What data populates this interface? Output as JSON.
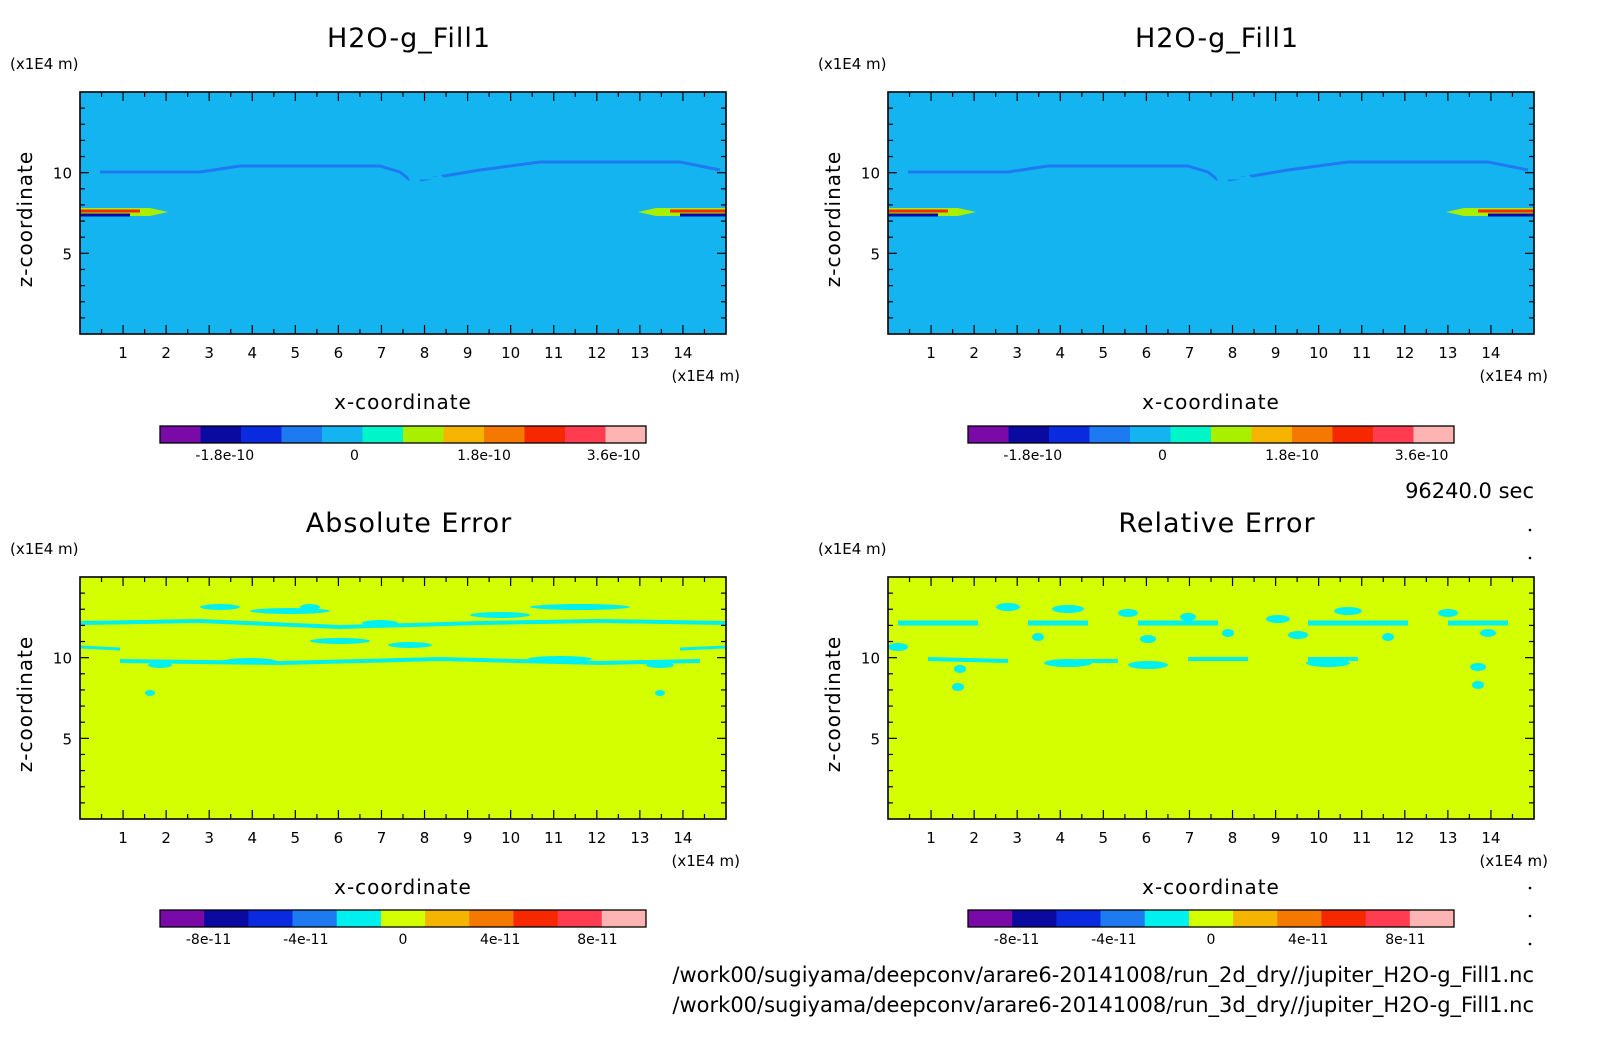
{
  "chart_data": [
    {
      "type": "heatmap",
      "title": "H2O-g_Fill1",
      "xlabel": "x-coordinate",
      "ylabel": "z-coordinate",
      "x_unit": "(x1E4 m)",
      "y_unit": "(x1E4 m)",
      "xlim": [
        0,
        15
      ],
      "ylim": [
        0,
        15
      ],
      "x_ticks": [
        "1",
        "2",
        "3",
        "4",
        "5",
        "6",
        "7",
        "8",
        "9",
        "10",
        "11",
        "12",
        "13",
        "14"
      ],
      "y_ticks": [
        "5",
        "10"
      ],
      "background_value": 0,
      "colorbar": {
        "colors": [
          "#7a0aa8",
          "#0a0aa0",
          "#0a2ae0",
          "#1e7af0",
          "#14b4f0",
          "#00f5c8",
          "#a8f000",
          "#f5b400",
          "#f57800",
          "#f52800",
          "#ff3c50",
          "#ffb4b4"
        ],
        "tick_labels": [
          "-1.8e-10",
          "0",
          "1.8e-10",
          "3.6e-10"
        ],
        "tick_values": [
          -1.8e-10,
          0,
          1.8e-10,
          3.6e-10
        ],
        "range": [
          -2.7e-10,
          4.05e-10
        ]
      }
    },
    {
      "type": "heatmap",
      "title": "H2O-g_Fill1",
      "xlabel": "x-coordinate",
      "ylabel": "z-coordinate",
      "x_unit": "(x1E4 m)",
      "y_unit": "(x1E4 m)",
      "xlim": [
        0,
        15
      ],
      "ylim": [
        0,
        15
      ],
      "x_ticks": [
        "1",
        "2",
        "3",
        "4",
        "5",
        "6",
        "7",
        "8",
        "9",
        "10",
        "11",
        "12",
        "13",
        "14"
      ],
      "y_ticks": [
        "5",
        "10"
      ],
      "background_value": 0,
      "colorbar": {
        "colors": [
          "#7a0aa8",
          "#0a0aa0",
          "#0a2ae0",
          "#1e7af0",
          "#14b4f0",
          "#00f5c8",
          "#a8f000",
          "#f5b400",
          "#f57800",
          "#f52800",
          "#ff3c50",
          "#ffb4b4"
        ],
        "tick_labels": [
          "-1.8e-10",
          "0",
          "1.8e-10",
          "3.6e-10"
        ],
        "tick_values": [
          -1.8e-10,
          0,
          1.8e-10,
          3.6e-10
        ],
        "range": [
          -2.7e-10,
          4.05e-10
        ]
      }
    },
    {
      "type": "heatmap",
      "title": "Absolute Error",
      "xlabel": "x-coordinate",
      "ylabel": "z-coordinate",
      "x_unit": "(x1E4 m)",
      "y_unit": "(x1E4 m)",
      "xlim": [
        0,
        15
      ],
      "ylim": [
        0,
        15
      ],
      "x_ticks": [
        "1",
        "2",
        "3",
        "4",
        "5",
        "6",
        "7",
        "8",
        "9",
        "10",
        "11",
        "12",
        "13",
        "14"
      ],
      "y_ticks": [
        "5",
        "10"
      ],
      "background_value": 0,
      "colorbar": {
        "colors": [
          "#7a0aa8",
          "#0a0aa0",
          "#0a2ae0",
          "#1e7af0",
          "#00f0f0",
          "#d4ff00",
          "#f5b400",
          "#f57800",
          "#f52800",
          "#ff3c50",
          "#ffb4b4"
        ],
        "tick_labels": [
          "-8e-11",
          "-4e-11",
          "0",
          "4e-11",
          "8e-11"
        ],
        "tick_values": [
          -8e-11,
          -4e-11,
          0,
          4e-11,
          8e-11
        ],
        "range": [
          -1e-10,
          1e-10
        ]
      }
    },
    {
      "type": "heatmap",
      "title": "Relative Error",
      "xlabel": "x-coordinate",
      "ylabel": "z-coordinate",
      "x_unit": "(x1E4 m)",
      "y_unit": "(x1E4 m)",
      "xlim": [
        0,
        15
      ],
      "ylim": [
        0,
        15
      ],
      "x_ticks": [
        "1",
        "2",
        "3",
        "4",
        "5",
        "6",
        "7",
        "8",
        "9",
        "10",
        "11",
        "12",
        "13",
        "14"
      ],
      "y_ticks": [
        "5",
        "10"
      ],
      "background_value": 0,
      "colorbar": {
        "colors": [
          "#7a0aa8",
          "#0a0aa0",
          "#0a2ae0",
          "#1e7af0",
          "#00f0f0",
          "#d4ff00",
          "#f5b400",
          "#f57800",
          "#f52800",
          "#ff3c50",
          "#ffb4b4"
        ],
        "tick_labels": [
          "-8e-11",
          "-4e-11",
          "0",
          "4e-11",
          "8e-11"
        ],
        "tick_values": [
          -8e-11,
          -4e-11,
          0,
          4e-11,
          8e-11
        ],
        "range": [
          -1e-10,
          1e-10
        ]
      }
    }
  ],
  "time_label": "96240.0 sec",
  "file_paths": [
    "/work00/sugiyama/deepconv/arare6-20141008/run_2d_dry//jupiter_H2O-g_Fill1.nc",
    "/work00/sugiyama/deepconv/arare6-20141008/run_3d_dry//jupiter_H2O-g_Fill1.nc"
  ]
}
